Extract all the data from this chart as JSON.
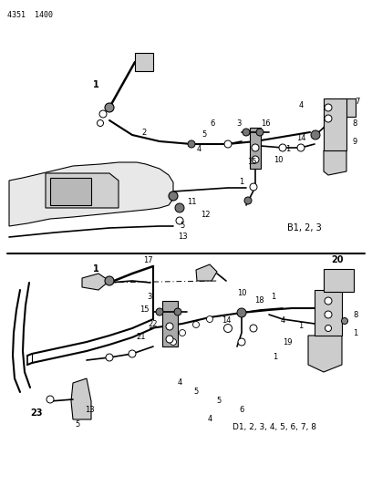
{
  "page_id": "4351  1400",
  "background_color": "#ffffff",
  "line_color": "#000000",
  "text_color": "#000000",
  "upper_label": "B1, 2, 3",
  "lower_label": "D1, 2, 3, 4, 5, 6, 7, 8",
  "figsize": [
    4.08,
    5.33
  ],
  "dpi": 100
}
